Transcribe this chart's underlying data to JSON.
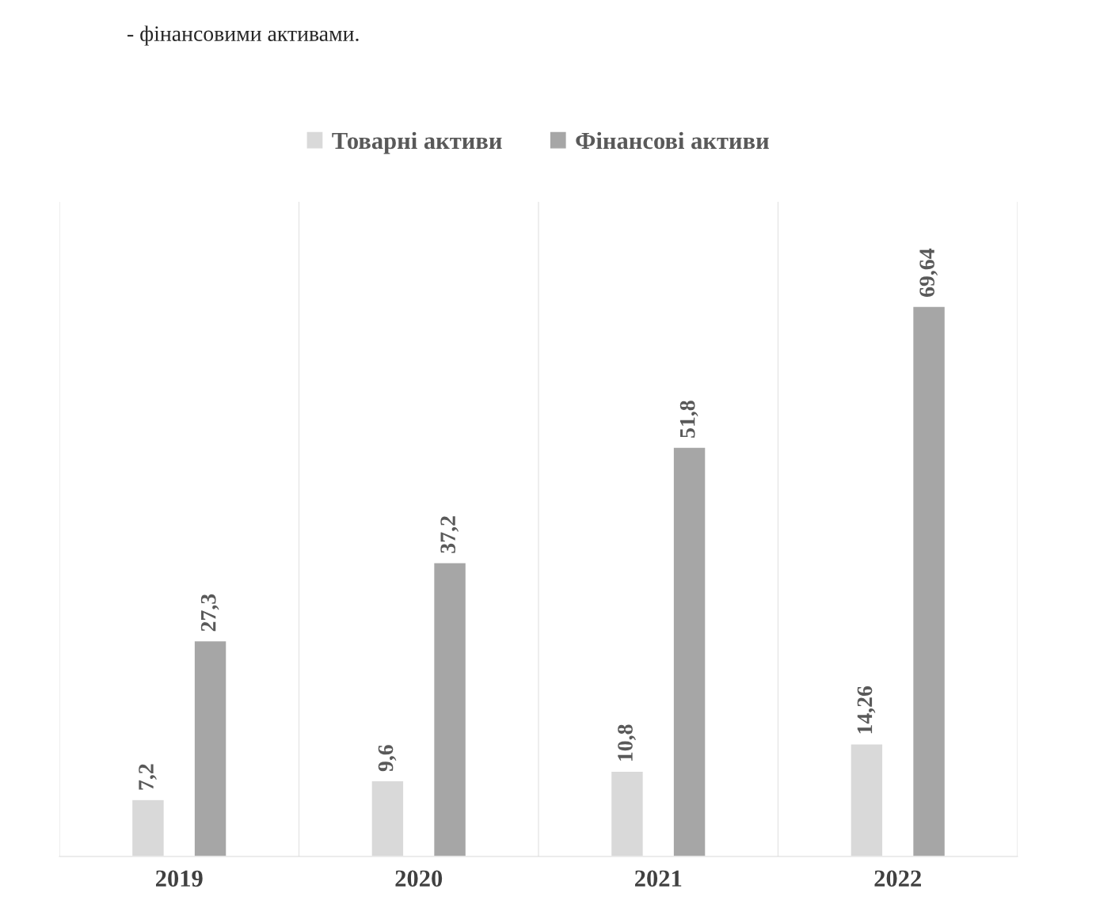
{
  "chart_data": {
    "type": "bar",
    "categories": [
      "2019",
      "2020",
      "2021",
      "2022"
    ],
    "series": [
      {
        "name": "Товарні активи",
        "color": "#d9d9d9",
        "values": [
          7.2,
          9.6,
          10.8,
          14.26
        ],
        "value_labels": [
          "7,2",
          "9,6",
          "10,8",
          "14,26"
        ]
      },
      {
        "name": "Фінансові активи",
        "color": "#a6a6a6",
        "values": [
          27.3,
          37.2,
          51.8,
          69.64
        ],
        "value_labels": [
          "27,3",
          "37,2",
          "51,8",
          "69,64"
        ]
      }
    ],
    "grid": "x",
    "legend": "top",
    "annotations": [
      "- фінансовими активами."
    ]
  }
}
